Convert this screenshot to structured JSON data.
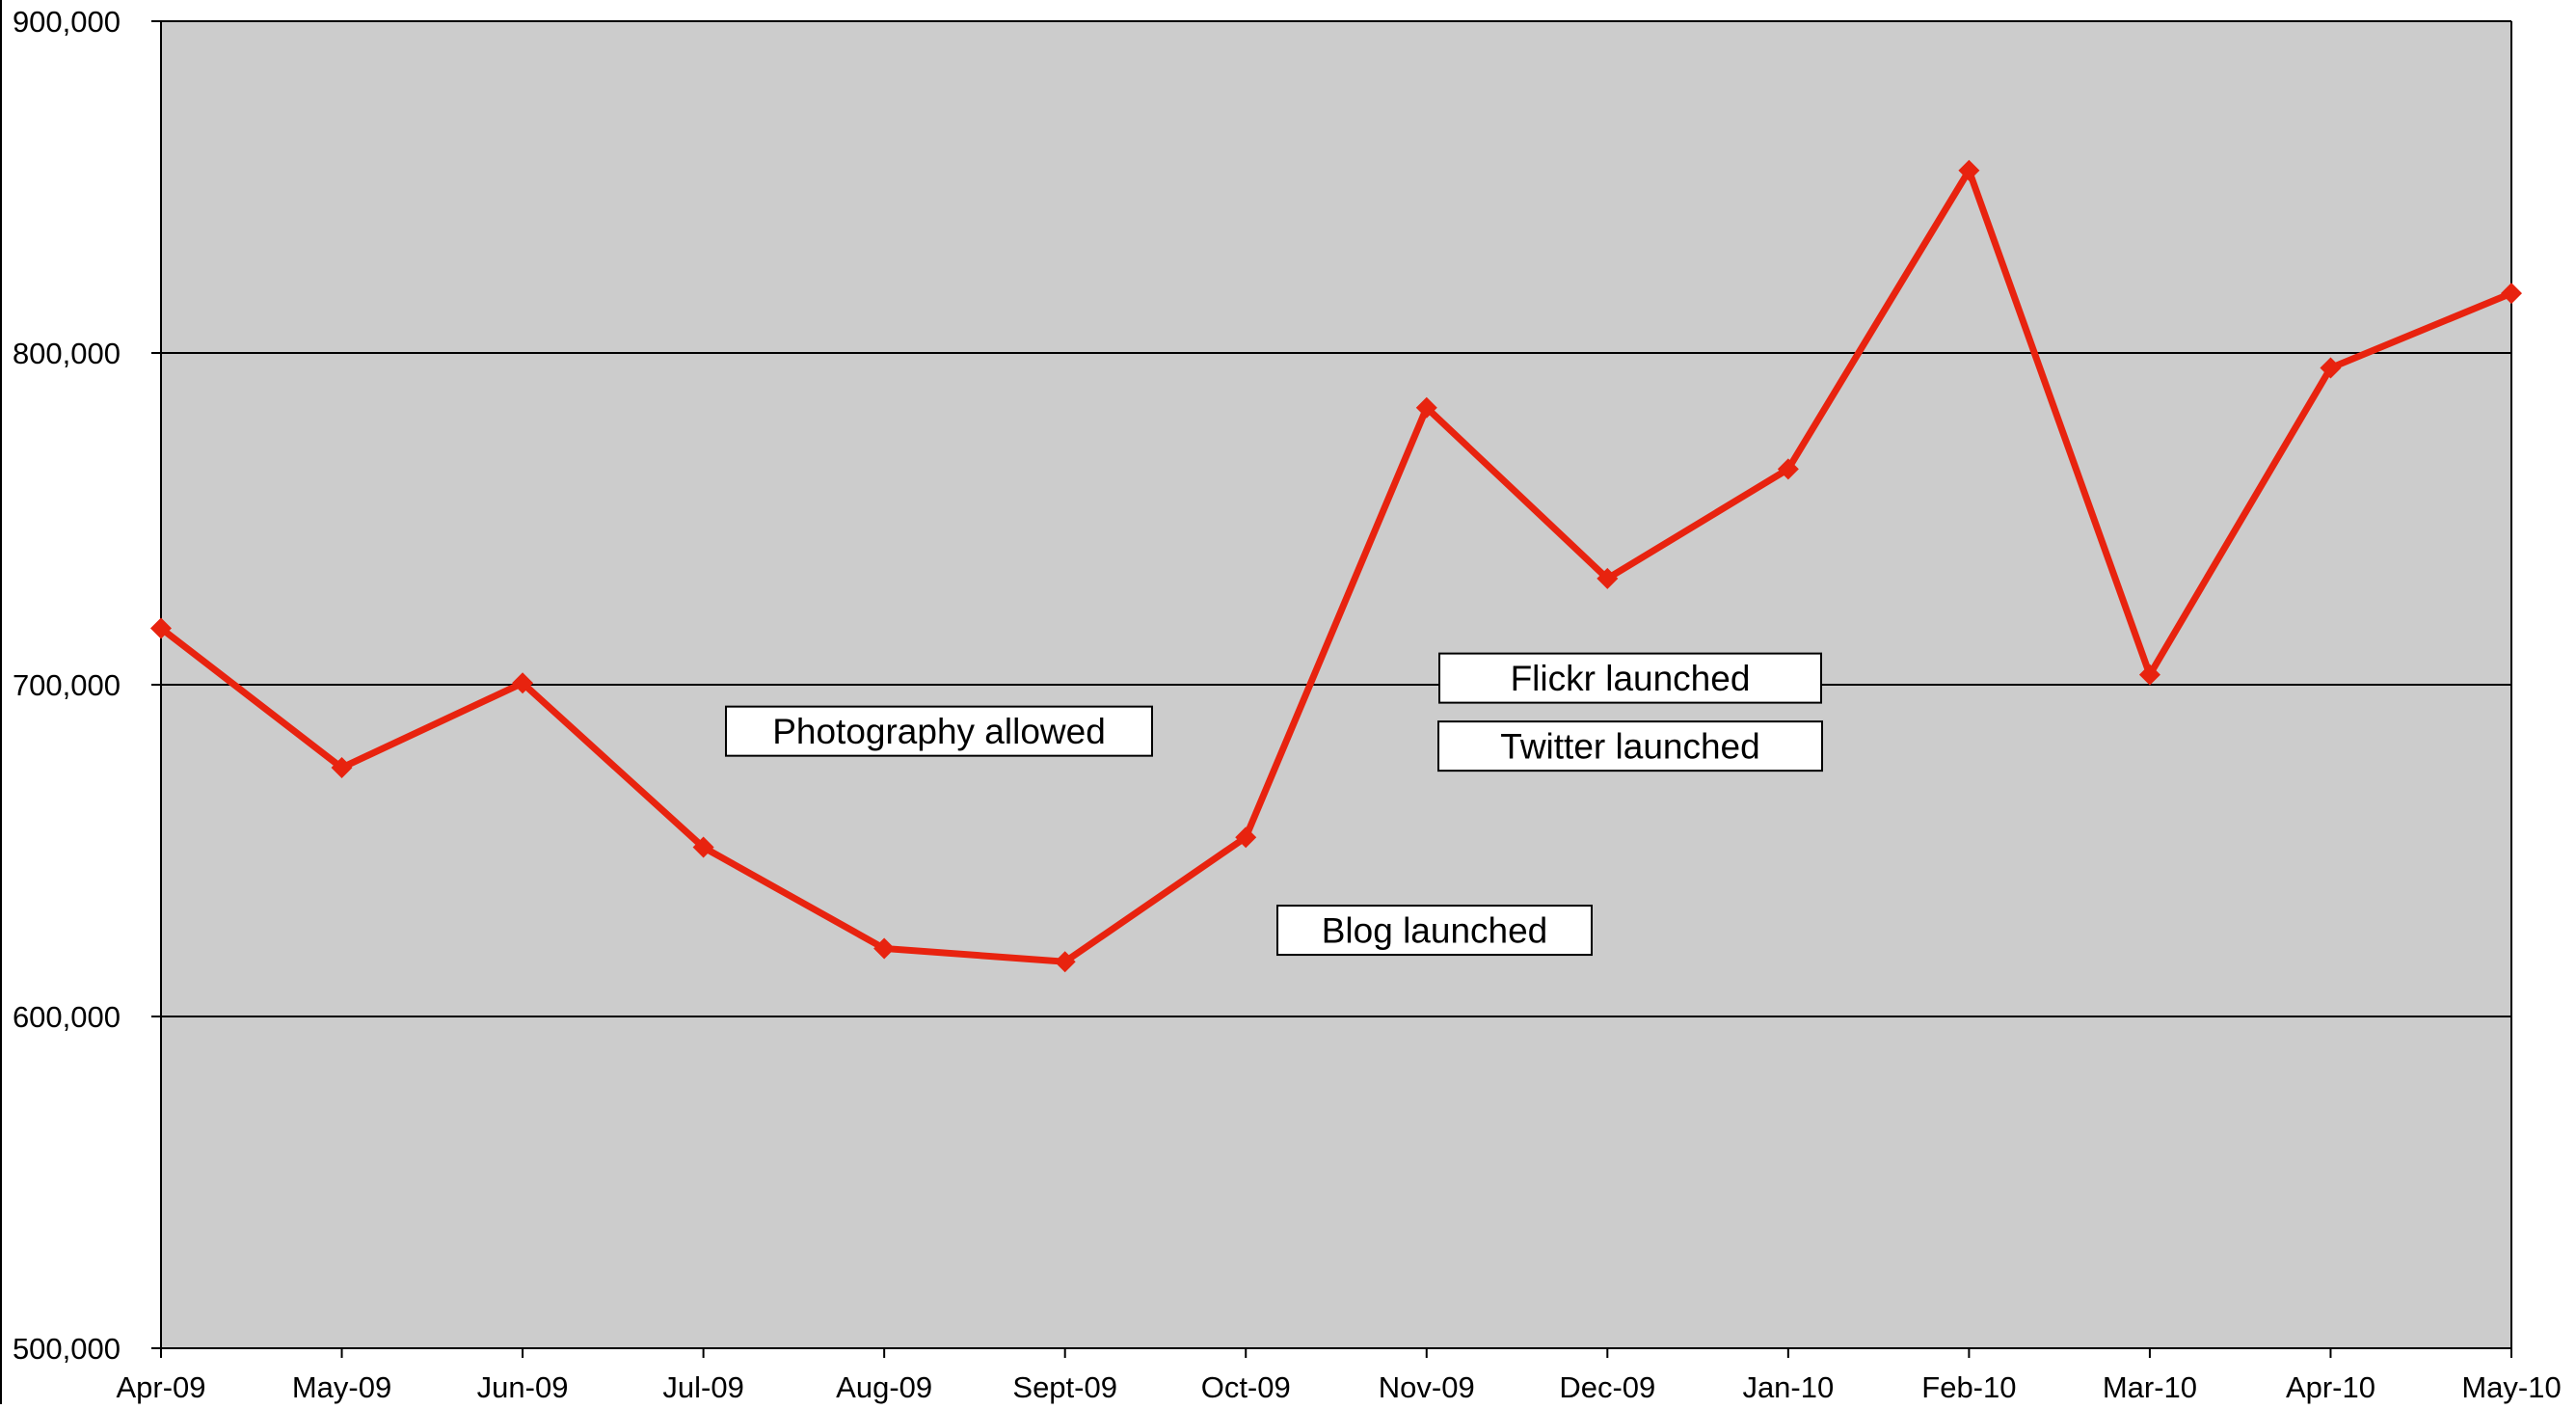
{
  "chart_data": {
    "type": "line",
    "title": "",
    "xlabel": "",
    "ylabel": "",
    "categories": [
      "Apr-09",
      "May-09",
      "Jun-09",
      "Jul-09",
      "Aug-09",
      "Sept-09",
      "Oct-09",
      "Nov-09",
      "Dec-09",
      "Jan-10",
      "Feb-10",
      "Mar-10",
      "Apr-10",
      "May-10"
    ],
    "series": [
      {
        "color": "#e8230f",
        "values": [
          717000,
          675000,
          700500,
          651000,
          620500,
          616500,
          654000,
          783500,
          732000,
          765000,
          855000,
          703000,
          795500,
          818000
        ]
      }
    ],
    "ylim": [
      500000,
      900000
    ],
    "yticks": [
      500000,
      600000,
      700000,
      800000,
      900000
    ],
    "ytick_labels": [
      "500,000",
      "600,000",
      "700,000",
      "800,000",
      "900,000"
    ],
    "grid": true,
    "legend": "none",
    "plot_background": "#cccccc",
    "annotations": [
      {
        "text": "Photography allowed",
        "category": "Jul-09",
        "value": 686000
      },
      {
        "text": "Blog launched",
        "category": "Oct-09",
        "value": 626000
      },
      {
        "text": "Flickr launched",
        "category": "Dec-09",
        "value": 702000
      },
      {
        "text": "Twitter launched",
        "category": "Dec-09",
        "value": 681500
      }
    ]
  }
}
